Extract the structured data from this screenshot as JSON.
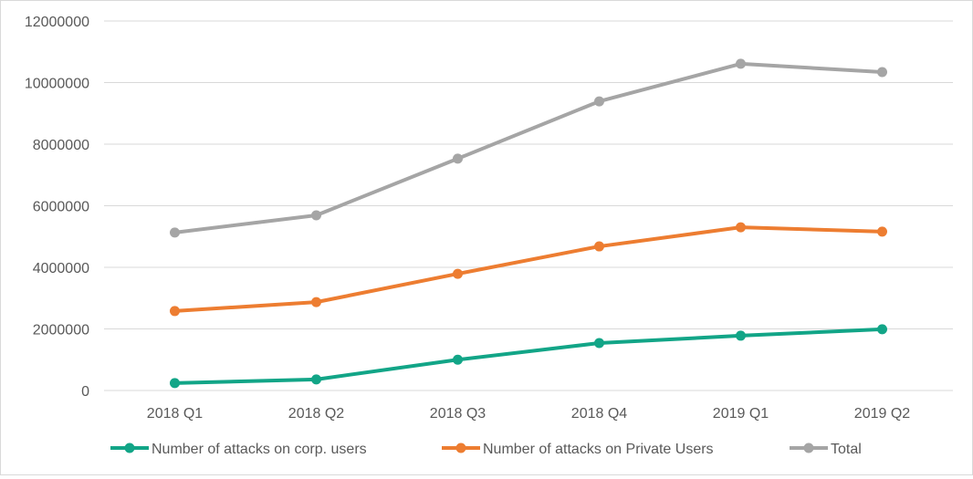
{
  "chart_data": {
    "type": "line",
    "title": "",
    "xlabel": "",
    "ylabel": "",
    "categories": [
      "2018 Q1",
      "2018 Q2",
      "2018 Q3",
      "2018 Q4",
      "2019 Q1",
      "2019 Q2"
    ],
    "ylim": [
      0,
      12000000
    ],
    "yticks": [
      0,
      2000000,
      4000000,
      6000000,
      8000000,
      10000000,
      12000000
    ],
    "ytick_labels": [
      "0",
      "2000000",
      "4000000",
      "6000000",
      "8000000",
      "10000000",
      "12000000"
    ],
    "grid": true,
    "legend": "bottom",
    "series": [
      {
        "name": "Number of attacks on corp. users",
        "color": "#12a587",
        "values": [
          240000,
          360000,
          1000000,
          1540000,
          1780000,
          1990000
        ]
      },
      {
        "name": "Number of attacks on Private Users",
        "color": "#ed7d31",
        "values": [
          2580000,
          2870000,
          3790000,
          4680000,
          5300000,
          5160000
        ]
      },
      {
        "name": "Total",
        "color": "#a5a5a5",
        "values": [
          5130000,
          5690000,
          7530000,
          9390000,
          10610000,
          10340000
        ]
      }
    ]
  }
}
